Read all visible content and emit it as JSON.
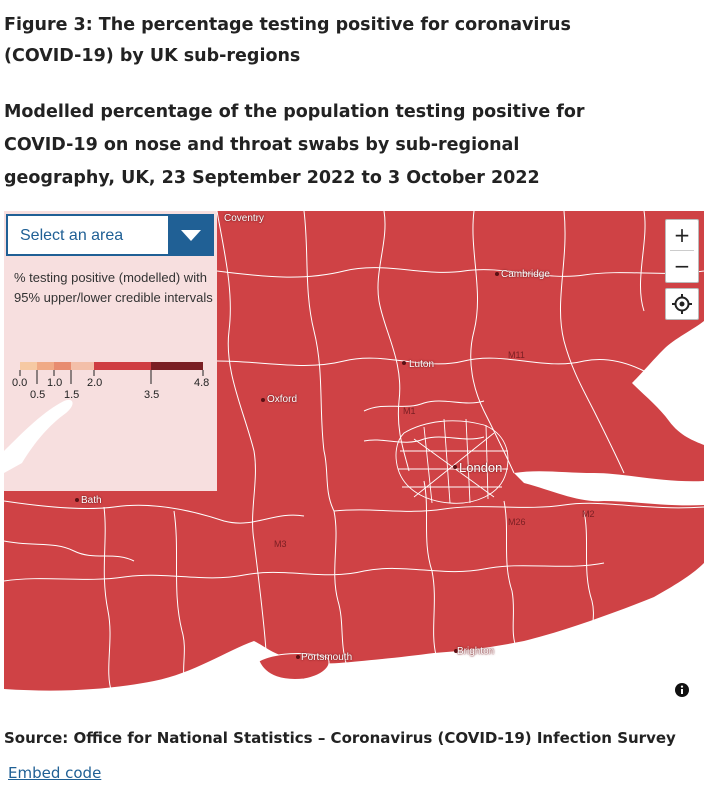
{
  "figure": {
    "title": "Figure 3: The percentage testing positive for coronavirus (COVID-19) by UK sub-regions",
    "subtitle": "Modelled percentage of the population testing positive for COVID-19 on nose and throat swabs by sub-regional geography, UK, 23 September 2022 to 3 October 2022",
    "source": "Source: Office for National Statistics – Coronavirus (COVID-19) Infection Survey",
    "embed_link": "Embed code"
  },
  "map": {
    "select": {
      "label": "Select an area"
    },
    "legend": {
      "description": "% testing positive (modelled) with 95% upper/lower credible intervals",
      "breaks": [
        "0.0",
        "0.5",
        "1.0",
        "1.5",
        "2.0",
        "3.5",
        "4.8"
      ],
      "colors": [
        "#f6c9a3",
        "#f0aa86",
        "#e88c70",
        "#cf3d42",
        "#a32a31",
        "#6d1a1f"
      ]
    },
    "fill_color": "#cf4245",
    "boundary_color": "#ffffff",
    "places": {
      "coventry": "Coventry",
      "cambridge": "Cambridge",
      "luton": "Luton",
      "oxford": "Oxford",
      "london": "London",
      "bath": "Bath",
      "portsmouth": "Portsmouth",
      "brighton": "Brighton"
    },
    "roads": {
      "m11": "M11",
      "m1": "M1",
      "m3": "M3",
      "m26": "M26",
      "m2": "M2"
    },
    "controls": {
      "zoom_in": "+",
      "zoom_out": "−",
      "locate_icon": "crosshair-icon",
      "info_icon": "info-icon",
      "dropdown_icon": "caret-down-icon"
    }
  }
}
